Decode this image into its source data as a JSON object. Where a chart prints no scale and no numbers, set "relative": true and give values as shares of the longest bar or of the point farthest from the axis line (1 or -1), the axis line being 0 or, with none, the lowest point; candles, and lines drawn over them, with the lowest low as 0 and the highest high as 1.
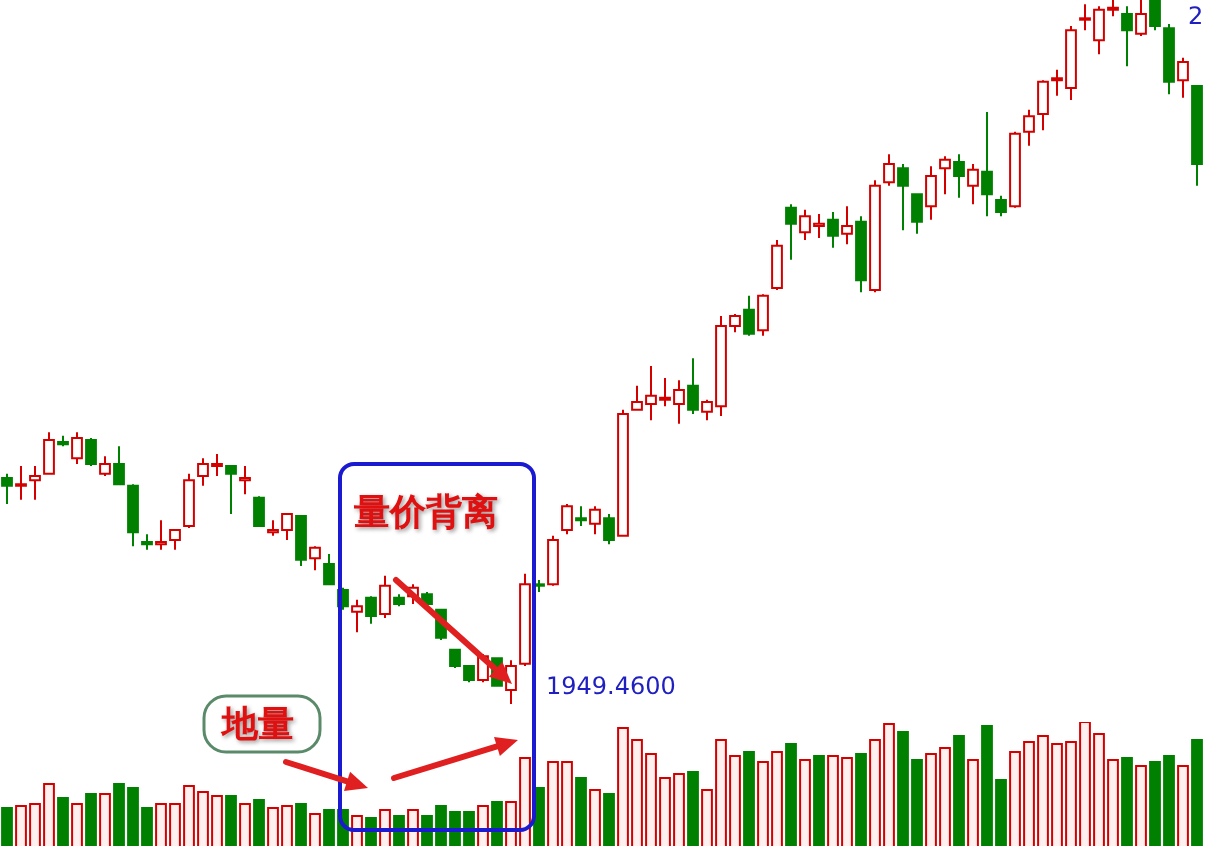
{
  "chart_data": [
    {
      "type": "candlestick",
      "relative": true,
      "categories": [
        null,
        null,
        null,
        null,
        null,
        null,
        null,
        null,
        null,
        null,
        null,
        null,
        null,
        null,
        null,
        null,
        null,
        null,
        null,
        null,
        null,
        null,
        null,
        null,
        null,
        null,
        null,
        null,
        null,
        null,
        null,
        null,
        null,
        null,
        null,
        null,
        null,
        null,
        null,
        null,
        null,
        null,
        null,
        null,
        null,
        null,
        null,
        null,
        null,
        null,
        null,
        null,
        null,
        null,
        null,
        null,
        null,
        null,
        null,
        null,
        null,
        null,
        null,
        null,
        null,
        null,
        null,
        null,
        null,
        null,
        null,
        null,
        null,
        null,
        null,
        null,
        null,
        null,
        null,
        null,
        null,
        null,
        null,
        null,
        null,
        null
      ],
      "ohlc": [
        [
          0.321,
          0.327,
          0.284,
          0.31
        ],
        [
          0.31,
          0.338,
          0.29,
          0.312
        ],
        [
          0.318,
          0.338,
          0.29,
          0.324
        ],
        [
          0.327,
          0.386,
          0.327,
          0.375
        ],
        [
          0.372,
          0.381,
          0.366,
          0.369
        ],
        [
          0.349,
          0.386,
          0.341,
          0.378
        ],
        [
          0.375,
          0.378,
          0.338,
          0.341
        ],
        [
          0.327,
          0.352,
          0.324,
          0.341
        ],
        [
          0.341,
          0.366,
          0.312,
          0.312
        ],
        [
          0.31,
          0.312,
          0.224,
          0.244
        ],
        [
          0.23,
          0.241,
          0.219,
          0.227
        ],
        [
          0.227,
          0.261,
          0.219,
          0.23
        ],
        [
          0.233,
          0.247,
          0.219,
          0.247
        ],
        [
          0.253,
          0.327,
          0.25,
          0.318
        ],
        [
          0.324,
          0.349,
          0.31,
          0.341
        ],
        [
          0.338,
          0.355,
          0.324,
          0.341
        ],
        [
          0.338,
          0.338,
          0.27,
          0.327
        ],
        [
          0.318,
          0.338,
          0.298,
          0.321
        ],
        [
          0.293,
          0.295,
          0.253,
          0.253
        ],
        [
          0.244,
          0.261,
          0.239,
          0.247
        ],
        [
          0.247,
          0.27,
          0.233,
          0.27
        ],
        [
          0.267,
          0.267,
          0.196,
          0.205
        ],
        [
          0.207,
          0.224,
          0.19,
          0.222
        ],
        [
          0.199,
          0.213,
          0.17,
          0.17
        ],
        [
          0.162,
          0.165,
          0.134,
          0.139
        ],
        [
          0.131,
          0.148,
          0.102,
          0.139
        ],
        [
          0.151,
          0.153,
          0.114,
          0.125
        ],
        [
          0.128,
          0.182,
          0.122,
          0.168
        ],
        [
          0.151,
          0.156,
          0.139,
          0.142
        ],
        [
          0.153,
          0.17,
          0.142,
          0.165
        ],
        [
          0.156,
          0.159,
          0.139,
          0.142
        ],
        [
          0.134,
          0.134,
          0.091,
          0.094
        ],
        [
          0.077,
          0.077,
          0.051,
          0.054
        ],
        [
          0.054,
          0.054,
          0.031,
          0.034
        ],
        [
          0.034,
          0.071,
          0.031,
          0.068
        ],
        [
          0.065,
          0.065,
          0.026,
          0.026
        ],
        [
          0.02,
          0.062,
          0,
          0.054
        ],
        [
          0.057,
          0.185,
          0.054,
          0.17
        ],
        [
          0.17,
          0.176,
          0.159,
          0.168
        ],
        [
          0.17,
          0.239,
          0.168,
          0.233
        ],
        [
          0.247,
          0.284,
          0.241,
          0.281
        ],
        [
          0.264,
          0.281,
          0.253,
          0.261
        ],
        [
          0.256,
          0.281,
          0.241,
          0.276
        ],
        [
          0.264,
          0.27,
          0.227,
          0.233
        ],
        [
          0.239,
          0.418,
          0.239,
          0.412
        ],
        [
          0.418,
          0.452,
          0.418,
          0.429
        ],
        [
          0.426,
          0.48,
          0.403,
          0.438
        ],
        [
          0.432,
          0.463,
          0.423,
          0.435
        ],
        [
          0.426,
          0.46,
          0.398,
          0.446
        ],
        [
          0.452,
          0.491,
          0.412,
          0.418
        ],
        [
          0.415,
          0.432,
          0.403,
          0.429
        ],
        [
          0.423,
          0.551,
          0.409,
          0.537
        ],
        [
          0.537,
          0.554,
          0.528,
          0.551
        ],
        [
          0.56,
          0.58,
          0.523,
          0.526
        ],
        [
          0.531,
          0.582,
          0.523,
          0.58
        ],
        [
          0.591,
          0.659,
          0.588,
          0.651
        ],
        [
          0.705,
          0.71,
          0.631,
          0.682
        ],
        [
          0.67,
          0.702,
          0.659,
          0.693
        ],
        [
          0.679,
          0.696,
          0.662,
          0.682
        ],
        [
          0.688,
          0.699,
          0.648,
          0.665
        ],
        [
          0.668,
          0.707,
          0.653,
          0.679
        ],
        [
          0.685,
          0.693,
          0.585,
          0.602
        ],
        [
          0.588,
          0.744,
          0.585,
          0.736
        ],
        [
          0.741,
          0.781,
          0.736,
          0.767
        ],
        [
          0.761,
          0.767,
          0.673,
          0.736
        ],
        [
          0.724,
          0.724,
          0.668,
          0.685
        ],
        [
          0.707,
          0.764,
          0.688,
          0.75
        ],
        [
          0.761,
          0.778,
          0.724,
          0.773
        ],
        [
          0.77,
          0.781,
          0.719,
          0.75
        ],
        [
          0.736,
          0.767,
          0.71,
          0.759
        ],
        [
          0.756,
          0.841,
          0.693,
          0.724
        ],
        [
          0.716,
          0.722,
          0.693,
          0.699
        ],
        [
          0.707,
          0.813,
          0.705,
          0.81
        ],
        [
          0.813,
          0.844,
          0.793,
          0.835
        ],
        [
          0.838,
          0.886,
          0.815,
          0.884
        ],
        [
          0.886,
          0.901,
          0.864,
          0.889
        ],
        [
          0.875,
          0.963,
          0.858,
          0.957
        ],
        [
          0.972,
          0.994,
          0.957,
          0.974
        ],
        [
          0.943,
          0.991,
          0.923,
          0.986
        ],
        [
          0.986,
          1,
          0.977,
          0.989
        ],
        [
          0.98,
          0.991,
          0.906,
          0.957
        ],
        [
          0.952,
          1,
          0.949,
          0.98
        ],
        [
          1,
          1,
          0.957,
          0.963
        ],
        [
          0.96,
          0.966,
          0.866,
          0.884
        ],
        [
          0.886,
          0.918,
          0.861,
          0.912
        ],
        [
          0.878,
          0.878,
          0.736,
          0.767
        ]
      ],
      "colors": [
        "#008000",
        "#d40000",
        "#d40000",
        "#d40000",
        "#008000",
        "#d40000",
        "#008000",
        "#d40000",
        "#008000",
        "#008000",
        "#008000",
        "#d40000",
        "#d40000",
        "#d40000",
        "#d40000",
        "#d40000",
        "#008000",
        "#d40000",
        "#008000",
        "#d40000",
        "#d40000",
        "#008000",
        "#d40000",
        "#008000",
        "#008000",
        "#d40000",
        "#008000",
        "#d40000",
        "#008000",
        "#d40000",
        "#008000",
        "#008000",
        "#008000",
        "#008000",
        "#d40000",
        "#008000",
        "#d40000",
        "#d40000",
        "#008000",
        "#d40000",
        "#d40000",
        "#008000",
        "#d40000",
        "#008000",
        "#d40000",
        "#d40000",
        "#d40000",
        "#d40000",
        "#d40000",
        "#008000",
        "#d40000",
        "#d40000",
        "#d40000",
        "#008000",
        "#d40000",
        "#d40000",
        "#008000",
        "#d40000",
        "#d40000",
        "#008000",
        "#d40000",
        "#008000",
        "#d40000",
        "#d40000",
        "#008000",
        "#008000",
        "#d40000",
        "#d40000",
        "#008000",
        "#d40000",
        "#008000",
        "#008000",
        "#d40000",
        "#d40000",
        "#d40000",
        "#d40000",
        "#d40000",
        "#d40000",
        "#d40000",
        "#d40000",
        "#008000",
        "#d40000",
        "#008000",
        "#008000",
        "#d40000",
        "#008000"
      ],
      "annotations": [
        "量价背离",
        "1949.4600",
        "2"
      ]
    },
    {
      "type": "bar",
      "relative": true,
      "categories": [
        null,
        null,
        null,
        null,
        null,
        null,
        null,
        null,
        null,
        null,
        null,
        null,
        null,
        null,
        null,
        null,
        null,
        null,
        null,
        null,
        null,
        null,
        null,
        null,
        null,
        null,
        null,
        null,
        null,
        null,
        null,
        null,
        null,
        null,
        null,
        null,
        null,
        null,
        null,
        null,
        null,
        null,
        null,
        null,
        null,
        null,
        null,
        null,
        null,
        null,
        null,
        null,
        null,
        null,
        null,
        null,
        null,
        null,
        null,
        null,
        null,
        null,
        null,
        null,
        null,
        null,
        null,
        null,
        null,
        null,
        null,
        null,
        null,
        null,
        null,
        null,
        null,
        null,
        null,
        null,
        null,
        null,
        null,
        null,
        null,
        null
      ],
      "values": [
        0.328,
        0.344,
        0.359,
        0.516,
        0.406,
        0.359,
        0.438,
        0.438,
        0.516,
        0.484,
        0.328,
        0.359,
        0.359,
        0.5,
        0.453,
        0.422,
        0.422,
        0.359,
        0.391,
        0.328,
        0.344,
        0.359,
        0.281,
        0.313,
        0.313,
        0.266,
        0.25,
        0.313,
        0.266,
        0.313,
        0.266,
        0.344,
        0.297,
        0.297,
        0.344,
        0.375,
        0.375,
        0.719,
        0.484,
        0.688,
        0.688,
        0.563,
        0.469,
        0.438,
        0.953,
        0.859,
        0.75,
        0.563,
        0.594,
        0.609,
        0.469,
        0.859,
        0.734,
        0.766,
        0.688,
        0.766,
        0.828,
        0.703,
        0.734,
        0.734,
        0.719,
        0.75,
        0.859,
        0.984,
        0.922,
        0.703,
        0.75,
        0.797,
        0.891,
        0.703,
        0.969,
        0.547,
        0.766,
        0.844,
        0.891,
        0.828,
        0.844,
        1,
        0.906,
        0.703,
        0.719,
        0.656,
        0.688,
        0.734,
        0.656,
        0.859
      ],
      "colors": [
        "#008000",
        "#d40000",
        "#d40000",
        "#d40000",
        "#008000",
        "#d40000",
        "#008000",
        "#d40000",
        "#008000",
        "#008000",
        "#008000",
        "#d40000",
        "#d40000",
        "#d40000",
        "#d40000",
        "#d40000",
        "#008000",
        "#d40000",
        "#008000",
        "#d40000",
        "#d40000",
        "#008000",
        "#d40000",
        "#008000",
        "#008000",
        "#d40000",
        "#008000",
        "#d40000",
        "#008000",
        "#d40000",
        "#008000",
        "#008000",
        "#008000",
        "#008000",
        "#d40000",
        "#008000",
        "#d40000",
        "#d40000",
        "#008000",
        "#d40000",
        "#d40000",
        "#008000",
        "#d40000",
        "#008000",
        "#d40000",
        "#d40000",
        "#d40000",
        "#d40000",
        "#d40000",
        "#008000",
        "#d40000",
        "#d40000",
        "#d40000",
        "#008000",
        "#d40000",
        "#d40000",
        "#008000",
        "#d40000",
        "#008000",
        "#d40000",
        "#d40000",
        "#008000",
        "#d40000",
        "#d40000",
        "#008000",
        "#008000",
        "#d40000",
        "#d40000",
        "#008000",
        "#d40000",
        "#008000",
        "#008000",
        "#d40000",
        "#d40000",
        "#d40000",
        "#d40000",
        "#d40000",
        "#d40000",
        "#d40000",
        "#d40000",
        "#008000",
        "#d40000",
        "#008000",
        "#008000",
        "#d40000",
        "#008000"
      ],
      "annotations": [
        "地量"
      ]
    }
  ]
}
